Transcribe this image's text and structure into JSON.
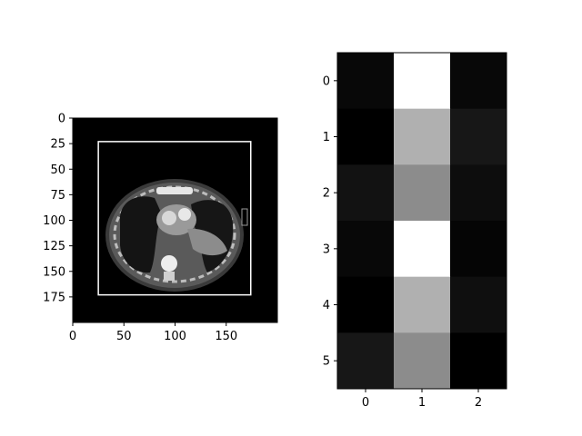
{
  "chart_data": [
    {
      "type": "image",
      "content": "grayscale axial chest CT scan slice inside a white bounding box on black background",
      "xlim": [
        0,
        200
      ],
      "ylim": [
        200,
        0
      ],
      "xticks": [
        0,
        50,
        100,
        150
      ],
      "yticks": [
        0,
        25,
        50,
        75,
        100,
        125,
        150,
        175
      ],
      "bounding_box": {
        "x0": 25,
        "y0": 23,
        "x1": 174,
        "y1": 173
      },
      "colormap": "gray"
    },
    {
      "type": "heatmap",
      "colormap": "gray",
      "xticks": [
        0,
        1,
        2
      ],
      "yticks": [
        0,
        1,
        2,
        3,
        4,
        5
      ],
      "values": [
        [
          0.03,
          1.0,
          0.03
        ],
        [
          0.0,
          0.69,
          0.09
        ],
        [
          0.07,
          0.55,
          0.05
        ],
        [
          0.03,
          1.0,
          0.02
        ],
        [
          0.0,
          0.69,
          0.06
        ],
        [
          0.09,
          0.55,
          0.0
        ]
      ]
    }
  ],
  "colors": {
    "background": "#ffffff",
    "image_bg": "#000000",
    "box": "#ffffff"
  }
}
